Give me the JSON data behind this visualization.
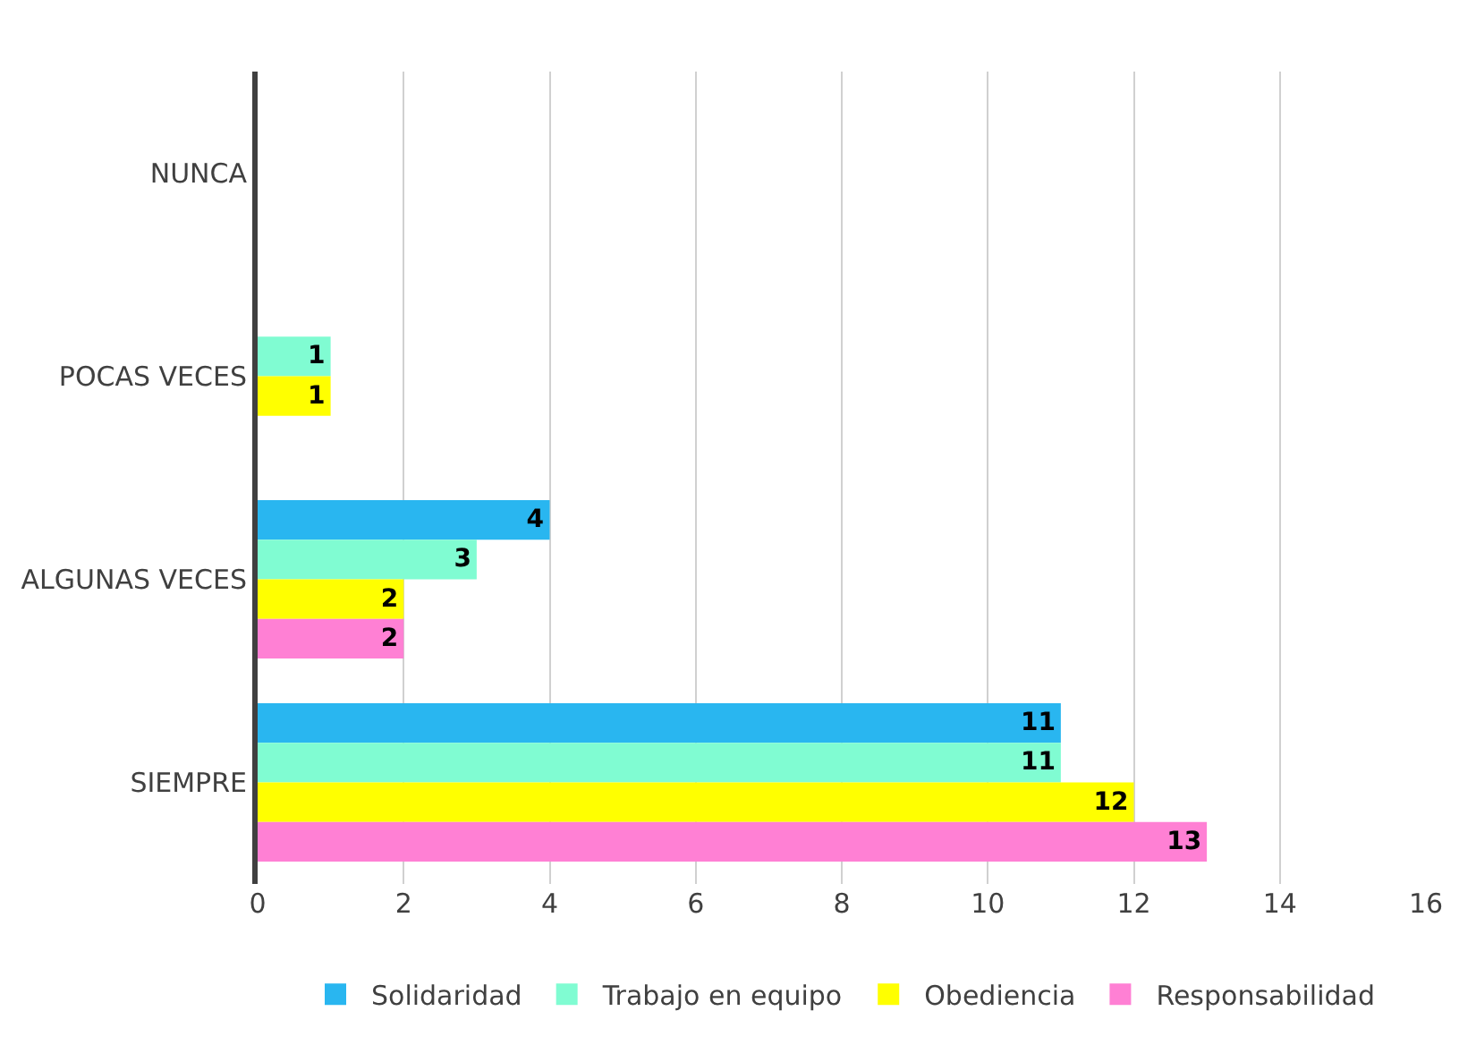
{
  "chart_data": {
    "type": "bar",
    "orientation": "horizontal",
    "categories": [
      "NUNCA",
      "POCAS VECES",
      "ALGUNAS VECES",
      "SIEMPRE"
    ],
    "series": [
      {
        "name": "Solidaridad",
        "color": "#29b6f0",
        "values": [
          null,
          null,
          4,
          11
        ]
      },
      {
        "name": "Trabajo en equipo",
        "color": "#80fcd2",
        "values": [
          null,
          1,
          3,
          11
        ]
      },
      {
        "name": "Obediencia",
        "color": "#ffff00",
        "values": [
          null,
          1,
          2,
          12
        ]
      },
      {
        "name": "Responsabilidad",
        "color": "#ff80d4",
        "values": [
          null,
          null,
          2,
          13
        ]
      }
    ],
    "xlim": [
      0,
      16
    ],
    "xticks": [
      0,
      2,
      4,
      6,
      8,
      10,
      12,
      14,
      16
    ],
    "grid": "x",
    "legend": "bottom",
    "data_labels": true
  }
}
